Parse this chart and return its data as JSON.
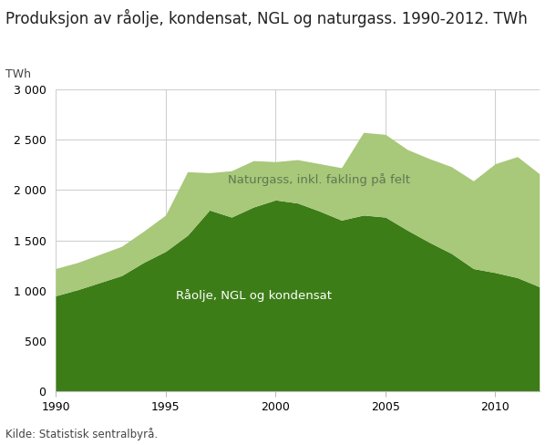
{
  "title": "Produksjon av råolje, kondensat, NGL og naturgass. 1990-2012. TWh",
  "ylabel": "TWh",
  "source": "Kilde: Statistisk sentralbyrå.",
  "years": [
    1990,
    1991,
    1992,
    1993,
    1994,
    1995,
    1996,
    1997,
    1998,
    1999,
    2000,
    2001,
    2002,
    2003,
    2004,
    2005,
    2006,
    2007,
    2008,
    2009,
    2010,
    2011,
    2012
  ],
  "oil_ngl_kondensat": [
    950,
    1010,
    1080,
    1150,
    1280,
    1390,
    1550,
    1800,
    1730,
    1830,
    1900,
    1870,
    1790,
    1700,
    1750,
    1730,
    1600,
    1480,
    1370,
    1220,
    1180,
    1130,
    1040
  ],
  "naturgass": [
    270,
    270,
    280,
    290,
    310,
    360,
    630,
    370,
    460,
    460,
    380,
    430,
    470,
    520,
    820,
    820,
    800,
    830,
    860,
    870,
    1080,
    1200,
    1120
  ],
  "color_oil": "#3d7d18",
  "color_gas": "#a8c87a",
  "label_oil": "Råolje, NGL og kondensat",
  "label_gas": "Naturgass, inkl. fakling på felt",
  "ylim": [
    0,
    3000
  ],
  "yticks": [
    0,
    500,
    1000,
    1500,
    2000,
    2500,
    3000
  ],
  "ytick_labels": [
    "0",
    "500",
    "1 000",
    "1 500",
    "2 000",
    "2 500",
    "3 000"
  ],
  "title_fontsize": 12,
  "annotation_color_oil": "#ffffff",
  "annotation_color_gas": "#607850",
  "bg_color": "#ffffff",
  "grid_color": "#d0d0d0"
}
